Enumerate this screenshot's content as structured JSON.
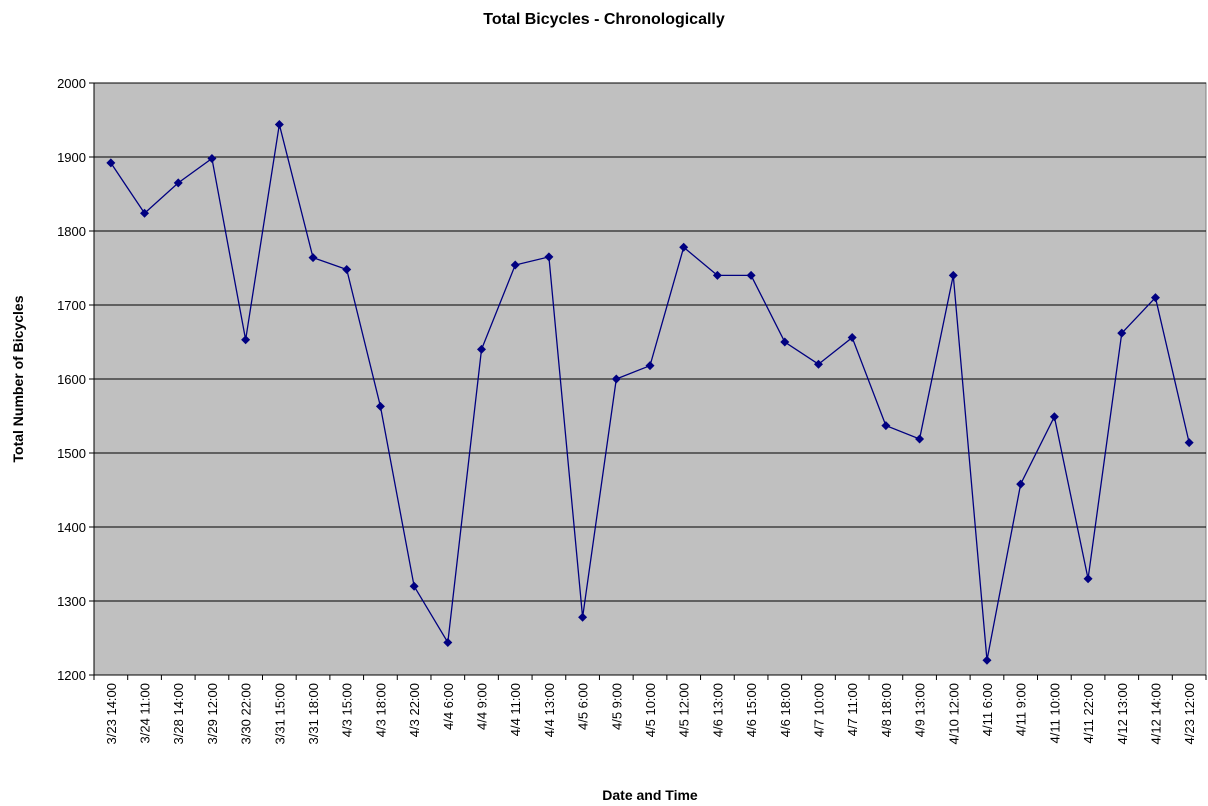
{
  "chart_data": {
    "type": "line",
    "title": "Total Bicycles - Chronologically",
    "x_label": "Date and Time",
    "y_label": "Total Number of Bicycles",
    "categories": [
      "3/23 14:00",
      "3/24 11:00",
      "3/28 14:00",
      "3/29 12:00",
      "3/30 22:00",
      "3/31 15:00",
      "3/31 18:00",
      "4/3 15:00",
      "4/3 18:00",
      "4/3 22:00",
      "4/4 6:00",
      "4/4 9:00",
      "4/4 11:00",
      "4/4 13:00",
      "4/5 6:00",
      "4/5 9:00",
      "4/5 10:00",
      "4/5 12:00",
      "4/6 13:00",
      "4/6 15:00",
      "4/6 18:00",
      "4/7 10:00",
      "4/7 11:00",
      "4/8 18:00",
      "4/9 13:00",
      "4/10 12:00",
      "4/11 6:00",
      "4/11 9:00",
      "4/11 10:00",
      "4/11 22:00",
      "4/12 13:00",
      "4/12 14:00",
      "4/23 12:00"
    ],
    "values": [
      1892,
      1824,
      1865,
      1898,
      1653,
      1944,
      1764,
      1748,
      1563,
      1320,
      1244,
      1640,
      1754,
      1765,
      1278,
      1600,
      1618,
      1778,
      1740,
      1740,
      1650,
      1620,
      1656,
      1537,
      1519,
      1740,
      1220,
      1458,
      1549,
      1330,
      1662,
      1710,
      1514
    ],
    "color": "#000080",
    "background": "#c0c0c0",
    "ylim": [
      1200,
      2000
    ],
    "yticks": [
      1200,
      1300,
      1400,
      1500,
      1600,
      1700,
      1800,
      1900,
      2000
    ],
    "grid": true
  }
}
